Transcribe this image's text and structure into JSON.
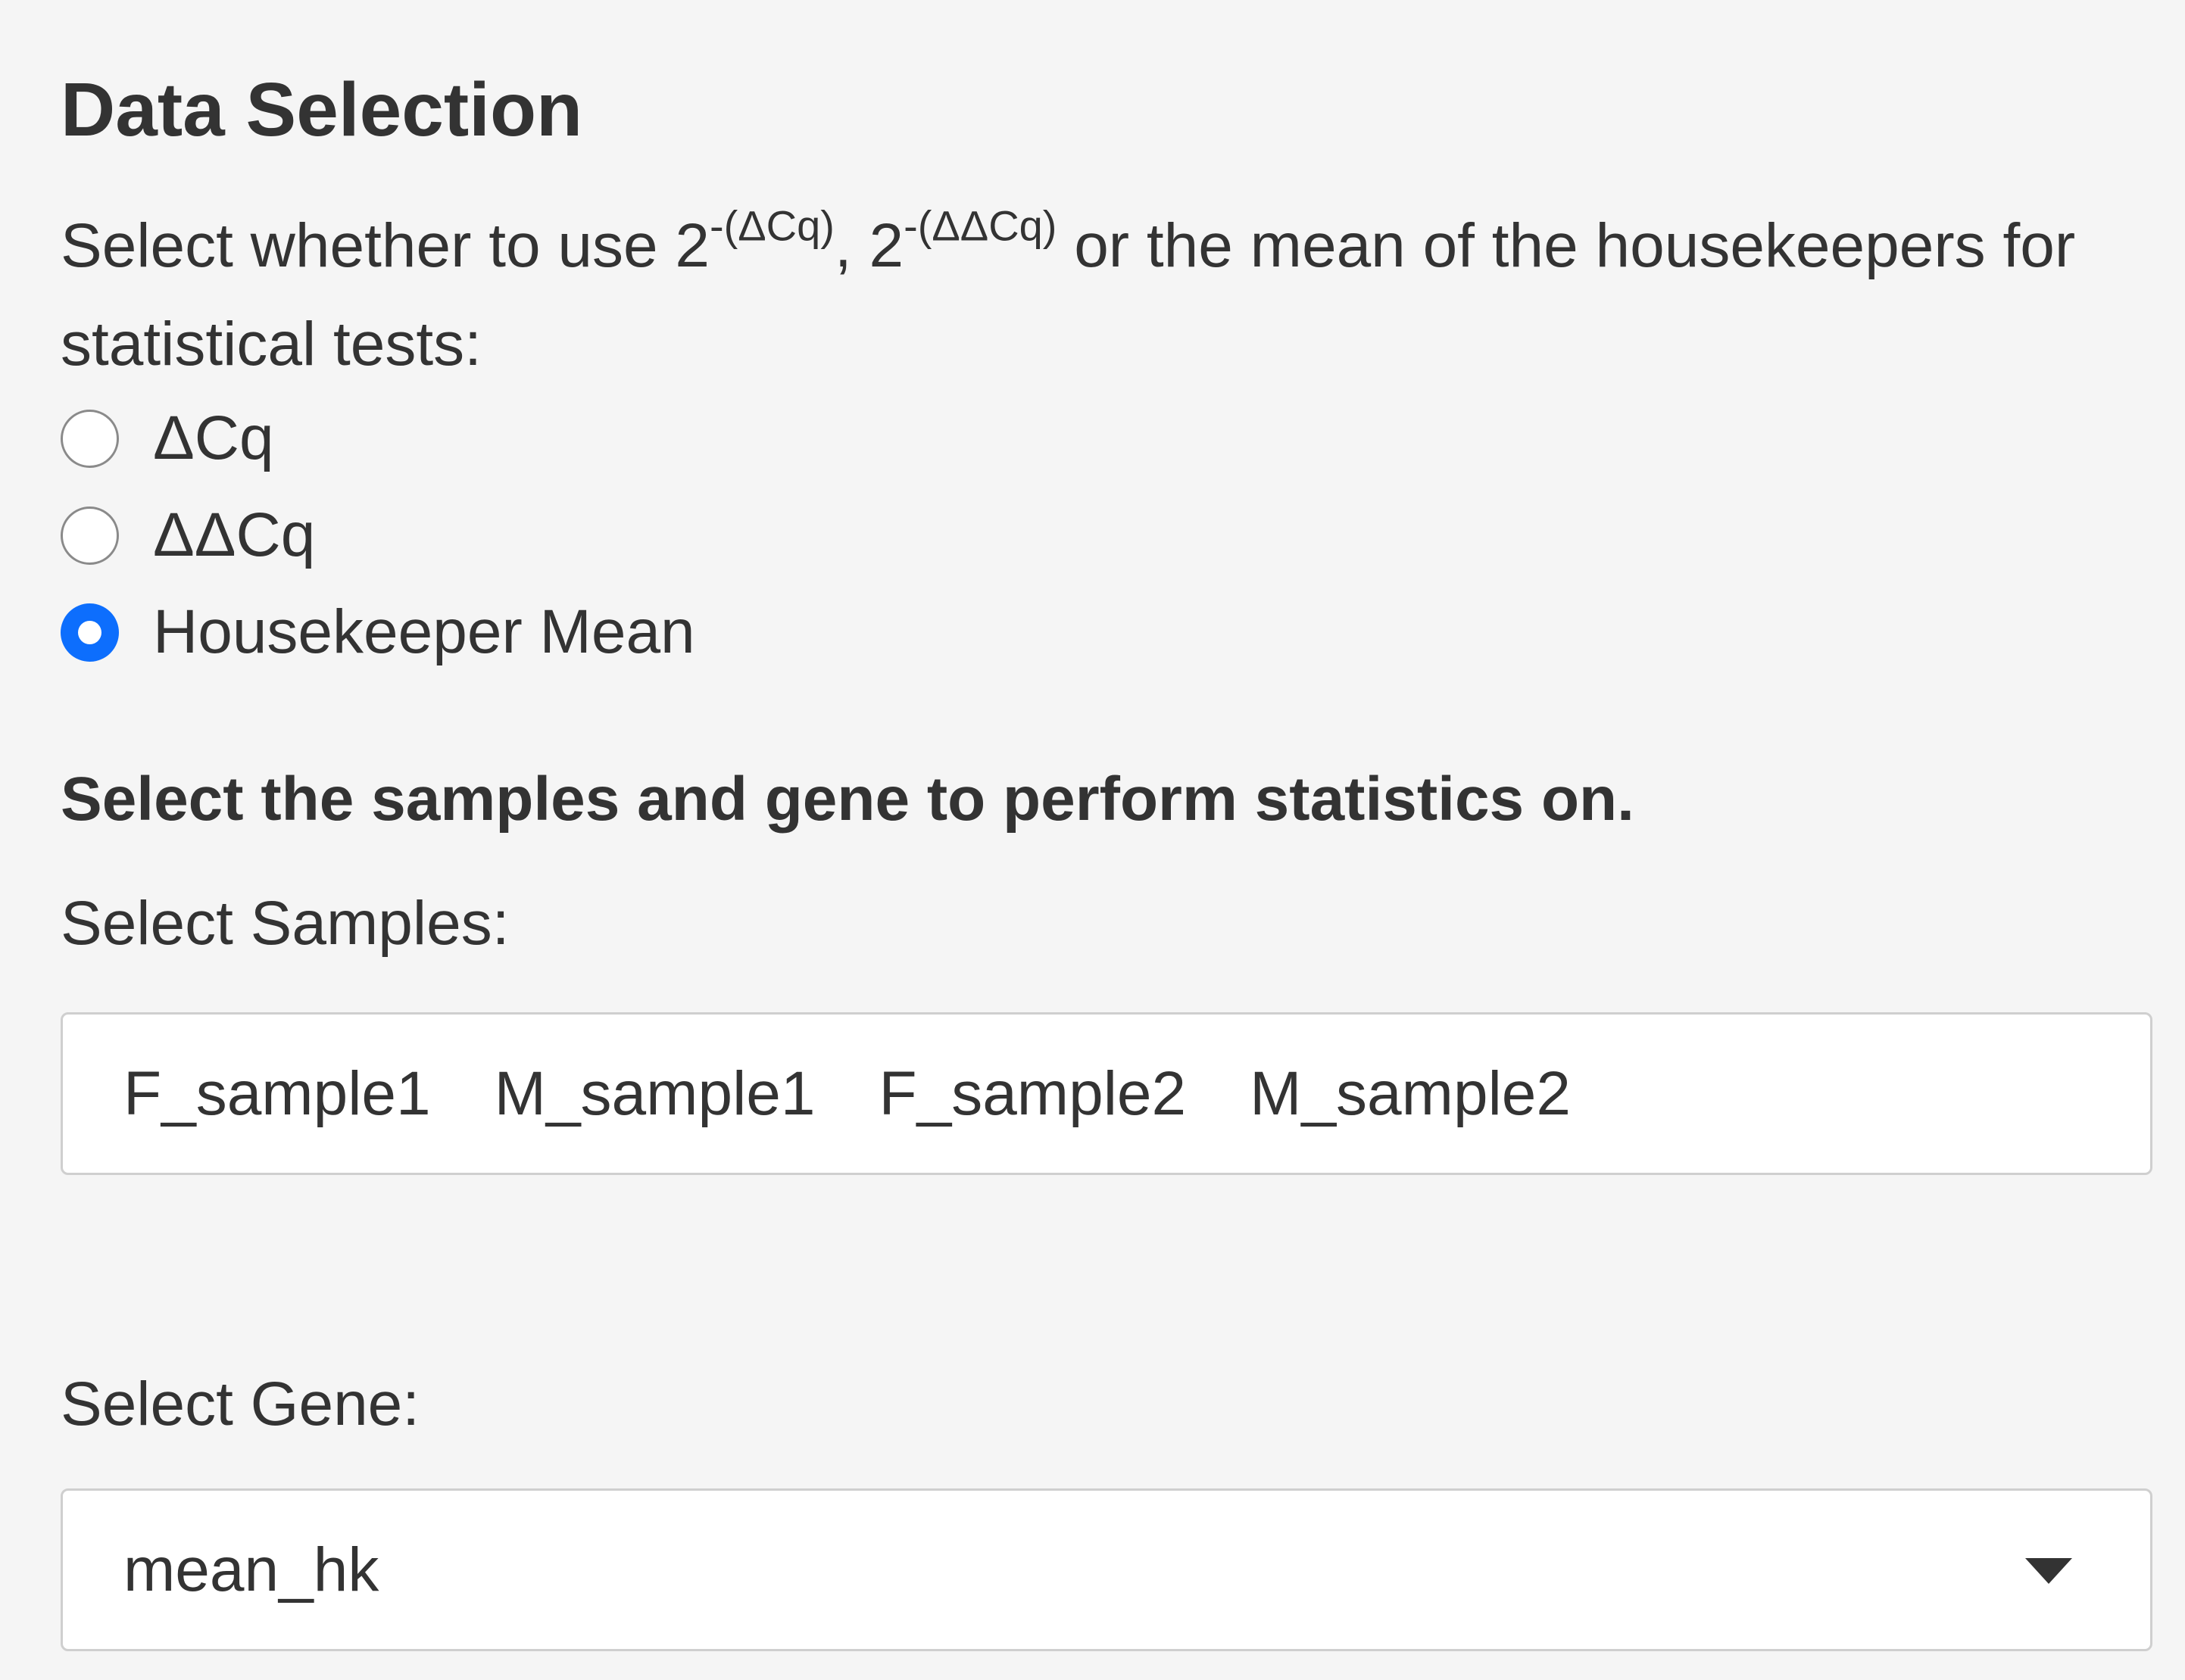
{
  "section": {
    "title": "Data Selection",
    "description": {
      "prefix": "Select whether to use 2",
      "sup1": "-(ΔCq)",
      "middle": ", 2",
      "sup2": "-(ΔΔCq)",
      "suffix": " or the mean of the housekeepers for statistical tests:"
    },
    "radio_options": [
      {
        "label": "ΔCq",
        "checked": false
      },
      {
        "label": "ΔΔCq",
        "checked": false
      },
      {
        "label": "Housekeeper Mean",
        "checked": true
      }
    ],
    "subheading": "Select the samples and gene to perform statistics on."
  },
  "samples": {
    "label": "Select Samples:",
    "selected": [
      "F_sample1",
      "M_sample1",
      "F_sample2",
      "M_sample2"
    ]
  },
  "gene": {
    "label": "Select Gene:",
    "value": "mean_hk"
  },
  "colors": {
    "accent": "#0d6efd",
    "background": "#f5f5f5",
    "text": "#333333",
    "border": "#cfcfcf"
  }
}
